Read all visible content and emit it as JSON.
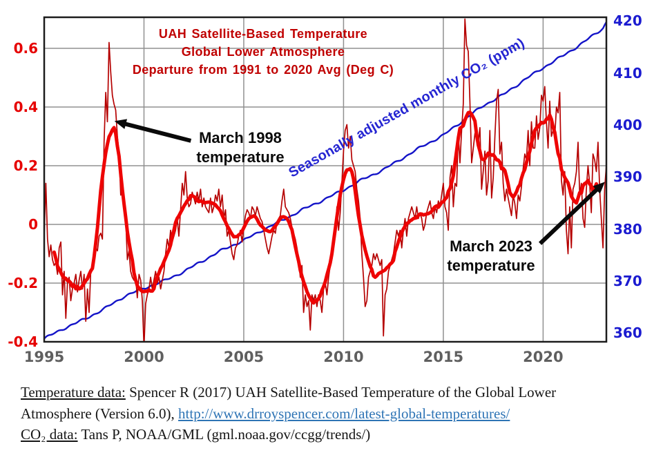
{
  "title": {
    "line1": "UAH Satellite-Based Temperature",
    "line2": "Global Lower Atmosphere",
    "line3": "Departure from 1991 to 2020 Avg (Deg C)"
  },
  "co2_curve_label": {
    "text": "Seasonally adjusted monthly CO₂ (ppm)"
  },
  "annotations": {
    "march1998": {
      "line1": "March 1998",
      "line2": "temperature",
      "arrow": {
        "from": [
          2002.35,
          0.285
        ],
        "to": [
          1998.52,
          0.352
        ]
      }
    },
    "march2023": {
      "line1": "March 2023",
      "line2": "temperature",
      "arrow": {
        "from": [
          2019.85,
          -0.065
        ],
        "to": [
          2023.1,
          0.145
        ]
      }
    }
  },
  "axes": {
    "x": {
      "ticks": [
        1995,
        2000,
        2005,
        2010,
        2015,
        2020
      ],
      "tick_labels": [
        "1995",
        "2000",
        "2005",
        "2010",
        "2015",
        "2020"
      ],
      "gridline_ticks": [
        2000,
        2005,
        2010,
        2015,
        2020
      ]
    },
    "y_left": {
      "ticks": [
        0.6,
        0.4,
        0.2,
        0,
        -0.2,
        -0.4
      ],
      "tick_labels": [
        "0.6",
        "0.4",
        "0.2",
        "0",
        "-0.2",
        "-0.4"
      ],
      "grid_ticks": [
        0.6,
        0.4,
        0.2,
        0,
        -0.2
      ]
    },
    "y_right": {
      "ticks": [
        420,
        410,
        400,
        390,
        380,
        370,
        360
      ],
      "tick_labels": [
        "420",
        "410",
        "400",
        "390",
        "380",
        "370",
        "360"
      ]
    }
  },
  "colors": {
    "temp_thin": "#b50000",
    "temp_thick": "#ee0404",
    "co2_blue": "#1414c8",
    "left_label": "#e60000",
    "right_label": "#1b1bd0",
    "x_label": "#5f5f5f",
    "title_red": "#c00000",
    "co2_label": "#2525d2",
    "ann_black": "#0a0a0a",
    "link_blue": "#2e74b5",
    "grid": "#909090",
    "frame": "#1c1c1c"
  },
  "chart_data": {
    "type": "line",
    "title": "UAH Satellite-Based Temperature Global Lower Atmosphere Departure from 1991 to 2020 Avg (Deg C)",
    "x_range": [
      1995,
      2023.17
    ],
    "left_ylim": [
      -0.4,
      0.706
    ],
    "right_ylim": [
      358.3,
      420.7
    ],
    "grid": true,
    "series": [
      {
        "name": "Monthly temperature anomaly (Deg C)",
        "axis": "left",
        "style": "thin",
        "start_year": 1995,
        "units": "deg C departure from 1991-2020 avg",
        "values_by_year": [
          [
            -0.04,
            0.14,
            -0.05,
            -0.11,
            -0.07,
            -0.12,
            -0.14,
            -0.13,
            -0.17,
            -0.08,
            -0.06,
            -0.24
          ],
          [
            -0.16,
            -0.32,
            -0.2,
            -0.18,
            -0.26,
            -0.22,
            -0.2,
            -0.17,
            -0.23,
            -0.19,
            -0.16,
            -0.22
          ],
          [
            -0.17,
            -0.33,
            -0.22,
            -0.3,
            -0.16,
            -0.14,
            -0.12,
            -0.08,
            -0.09,
            -0.04,
            -0.03,
            -0.05
          ],
          [
            0.28,
            0.45,
            0.35,
            0.62,
            0.52,
            0.44,
            0.41,
            0.39,
            0.3,
            0.24,
            0.1,
            0.14
          ],
          [
            0.05,
            0.02,
            -0.12,
            -0.09,
            -0.16,
            -0.18,
            -0.19,
            -0.18,
            -0.25,
            -0.17,
            -0.19,
            -0.26
          ],
          [
            -0.42,
            -0.27,
            -0.24,
            -0.22,
            -0.18,
            -0.22,
            -0.19,
            -0.16,
            -0.2,
            -0.18,
            -0.22,
            -0.19
          ],
          [
            -0.16,
            -0.1,
            -0.05,
            -0.08,
            -0.02,
            -0.06,
            -0.04,
            -0.02,
            0.02,
            -0.04,
            0.05,
            0.14
          ],
          [
            0.1,
            0.18,
            0.09,
            0.06,
            0.07,
            0.11,
            0.09,
            0.07,
            0.11,
            0.08,
            0.12,
            0.06
          ],
          [
            0.09,
            0.06,
            0.05,
            0.04,
            0.09,
            0.04,
            0.06,
            0.1,
            0.08,
            0.12,
            0.06,
            0.1
          ],
          [
            0.02,
            0.05,
            -0.04,
            -0.02,
            -0.06,
            -0.1,
            -0.12,
            -0.08,
            -0.07,
            -0.04,
            -0.02,
            -0.06
          ],
          [
            -0.01,
            0.03,
            0.05,
            0.04,
            0.02,
            0.06,
            0.05,
            0.03,
            0.06,
            0.04,
            0.02,
            0.01
          ],
          [
            -0.02,
            -0.05,
            -0.08,
            -0.1,
            -0.07,
            -0.04,
            -0.02,
            -0.03,
            0.01,
            0.02,
            0.03,
            0.08
          ],
          [
            0.12,
            0.06,
            0.05,
            0.04,
            0.02,
            -0.01,
            -0.03,
            -0.05,
            -0.08,
            -0.12,
            -0.18,
            -0.14
          ],
          [
            -0.3,
            -0.24,
            -0.28,
            -0.26,
            -0.36,
            -0.24,
            -0.26,
            -0.24,
            -0.28,
            -0.24,
            -0.26,
            -0.3
          ],
          [
            -0.22,
            -0.2,
            -0.24,
            -0.18,
            -0.14,
            -0.12,
            -0.08,
            -0.04,
            0.06,
            -0.02,
            0.04,
            0.14
          ],
          [
            0.25,
            0.32,
            0.34,
            0.26,
            0.3,
            0.22,
            0.2,
            0.18,
            0.12,
            0.08,
            0.02,
            -0.1
          ],
          [
            -0.18,
            -0.28,
            -0.26,
            -0.18,
            -0.16,
            -0.14,
            -0.1,
            -0.12,
            -0.1,
            -0.12,
            -0.14,
            -0.12
          ],
          [
            -0.38,
            -0.24,
            -0.22,
            -0.16,
            -0.14,
            -0.12,
            -0.1,
            -0.06,
            -0.02,
            -0.04,
            -0.02,
            -0.08
          ],
          [
            -0.02,
            0.02,
            -0.04,
            0.02,
            0.04,
            0.06,
            0.04,
            0.02,
            0.06,
            0.02,
            0.04,
            0.02
          ],
          [
            -0.02,
            0.0,
            0.04,
            0.06,
            0.08,
            0.04,
            0.02,
            0.06,
            0.04,
            0.08,
            0.06,
            0.1
          ],
          [
            0.14,
            0.06,
            0.04,
            -0.02,
            0.16,
            0.2,
            0.06,
            0.14,
            0.13,
            0.31,
            0.21,
            0.32
          ],
          [
            0.41,
            0.7,
            0.61,
            0.59,
            0.42,
            0.21,
            0.26,
            0.31,
            0.32,
            0.28,
            0.33,
            0.12
          ],
          [
            0.18,
            0.25,
            0.1,
            0.15,
            0.32,
            0.09,
            0.16,
            0.3,
            0.42,
            0.46,
            0.24,
            0.28
          ],
          [
            0.14,
            0.08,
            0.12,
            0.09,
            0.06,
            0.03,
            0.1,
            0.07,
            0.02,
            0.1,
            0.08,
            0.13
          ],
          [
            0.19,
            0.24,
            0.22,
            0.32,
            0.2,
            0.35,
            0.26,
            0.26,
            0.37,
            0.29,
            0.33,
            0.44
          ],
          [
            0.42,
            0.47,
            0.35,
            0.26,
            0.42,
            0.3,
            0.32,
            0.3,
            0.4,
            0.38,
            0.45,
            0.15
          ],
          [
            0.1,
            0.18,
            -0.02,
            -0.1,
            0.06,
            -0.08,
            0.12,
            0.14,
            0.18,
            0.28,
            0.1,
            0.14
          ],
          [
            0.02,
            -0.01,
            0.12,
            0.2,
            0.14,
            0.04,
            0.24,
            0.22,
            0.18,
            0.28,
            0.12,
            0.02
          ],
          [
            -0.08,
            0.12,
            0.2
          ]
        ]
      },
      {
        "name": "13-month centered average temperature",
        "axis": "left",
        "style": "thick",
        "derived": "13-month centered moving average of the monthly series"
      },
      {
        "name": "Seasonally adjusted monthly CO₂ (ppm)",
        "axis": "right",
        "style": "medium",
        "units": "ppm",
        "anchor_points": [
          [
            1995.0,
            358.9
          ],
          [
            1996.0,
            360.9
          ],
          [
            1997.0,
            362.6
          ],
          [
            1998.0,
            364.6
          ],
          [
            1999.0,
            367.0
          ],
          [
            2000.0,
            368.6
          ],
          [
            2001.0,
            370.0
          ],
          [
            2002.0,
            371.8
          ],
          [
            2003.0,
            374.0
          ],
          [
            2004.0,
            376.1
          ],
          [
            2005.0,
            377.8
          ],
          [
            2006.0,
            379.9
          ],
          [
            2007.0,
            381.8
          ],
          [
            2008.0,
            383.8
          ],
          [
            2009.0,
            385.6
          ],
          [
            2010.0,
            387.5
          ],
          [
            2011.0,
            389.6
          ],
          [
            2012.0,
            391.4
          ],
          [
            2013.0,
            393.7
          ],
          [
            2014.0,
            396.0
          ],
          [
            2015.0,
            398.0
          ],
          [
            2016.0,
            400.9
          ],
          [
            2017.0,
            403.7
          ],
          [
            2018.0,
            405.8
          ],
          [
            2019.0,
            408.5
          ],
          [
            2020.0,
            411.0
          ],
          [
            2021.0,
            413.3
          ],
          [
            2022.0,
            415.8
          ],
          [
            2023.0,
            418.6
          ],
          [
            2023.17,
            419.8
          ]
        ]
      }
    ]
  },
  "caption": {
    "t1_label": "Temperature data:",
    "t1_text": " Spencer R (2017) UAH Satellite-Based Temperature of the Global Lower",
    "t2_text": "Atmosphere (Version 6.0), ",
    "t2_link": "http://www.drroyspencer.com/latest-global-temperatures/",
    "t3_label": "CO₂ data:",
    "t3_text": " Tans P, NOAA/GML (gml.noaa.gov/ccgg/trends/)"
  }
}
